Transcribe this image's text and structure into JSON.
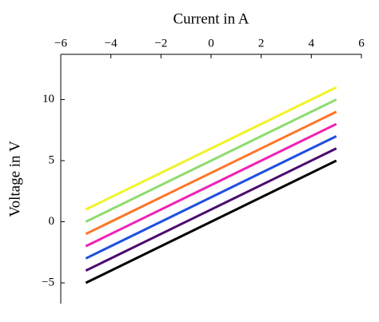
{
  "chart_data": {
    "type": "line",
    "xlabel": "Current in A",
    "ylabel": "Voltage in V",
    "x": [
      -5,
      5
    ],
    "series": [
      {
        "color": "#000000",
        "values": [
          -5,
          5
        ]
      },
      {
        "color": "#4b0a6e",
        "values": [
          -4,
          6
        ]
      },
      {
        "color": "#1f4fe0",
        "values": [
          -3,
          7
        ]
      },
      {
        "color": "#f022b4",
        "values": [
          -2,
          8
        ]
      },
      {
        "color": "#ff7427",
        "values": [
          -1,
          9
        ]
      },
      {
        "color": "#8fdc6e",
        "values": [
          0,
          10
        ]
      },
      {
        "color": "#f2f22a",
        "values": [
          1,
          11
        ]
      }
    ],
    "xlim": [
      -6,
      6
    ],
    "xticks": [
      {
        "value": -6,
        "label": "−6"
      },
      {
        "value": -4,
        "label": "−4"
      },
      {
        "value": -2,
        "label": "−2"
      },
      0,
      2,
      4,
      6
    ],
    "ylim": [
      -6.7,
      13.7
    ],
    "yticks": [
      {
        "value": -5,
        "label": "−5"
      },
      0,
      5,
      10
    ]
  }
}
